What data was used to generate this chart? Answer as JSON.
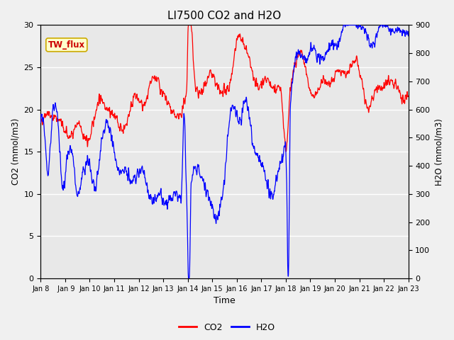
{
  "title": "LI7500 CO2 and H2O",
  "xlabel": "Time",
  "ylabel_left": "CO2 (mmol/m3)",
  "ylabel_right": "H2O (mmol/m3)",
  "co2_ylim": [
    0,
    30
  ],
  "h2o_ylim": [
    0,
    900
  ],
  "co2_yticks": [
    0,
    5,
    10,
    15,
    20,
    25,
    30
  ],
  "h2o_yticks": [
    0,
    100,
    200,
    300,
    400,
    500,
    600,
    700,
    800,
    900
  ],
  "x_tick_labels": [
    "Jan 8",
    "Jan 9",
    "Jan 10",
    "Jan 11",
    "Jan 12",
    "Jan 13",
    "Jan 14",
    "Jan 15",
    "Jan 16",
    "Jan 17",
    "Jan 18",
    "Jan 19",
    "Jan 20",
    "Jan 21",
    "Jan 22",
    "Jan 23"
  ],
  "co2_color": "#ff0000",
  "h2o_color": "#0000ff",
  "bg_color": "#e8e8e8",
  "fig_bg_color": "#f0f0f0",
  "legend_co2": "CO2",
  "legend_h2o": "H2O",
  "site_label": "TW_flux",
  "site_label_color": "#cc0000",
  "site_label_bg": "#ffffcc",
  "site_label_edge": "#ccaa00",
  "n_points": 3000,
  "seed": 42,
  "figsize": [
    6.4,
    4.8
  ],
  "dpi": 100
}
